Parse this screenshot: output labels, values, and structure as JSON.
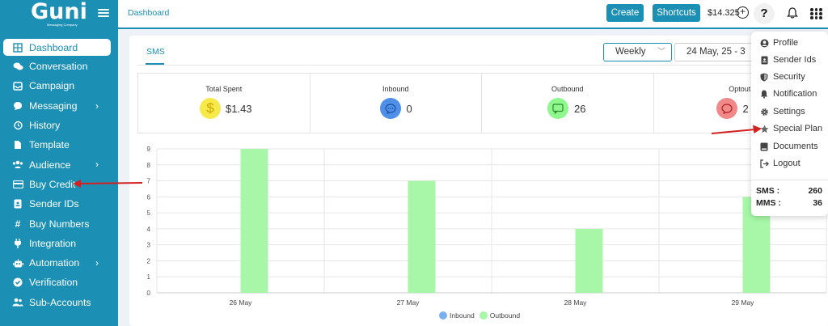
{
  "brand": {
    "name": "Guni",
    "tagline": "Messaging Company"
  },
  "sidebar": {
    "items": [
      {
        "label": "Dashboard",
        "icon": "grid-icon",
        "active": true
      },
      {
        "label": "Conversation",
        "icon": "chat-icon"
      },
      {
        "label": "Campaign",
        "icon": "inbox-icon"
      },
      {
        "label": "Messaging",
        "icon": "message-icon",
        "chevron": true
      },
      {
        "label": "History",
        "icon": "history-icon"
      },
      {
        "label": "Template",
        "icon": "file-icon"
      },
      {
        "label": "Audience",
        "icon": "users-icon",
        "chevron": true
      },
      {
        "label": "Buy Credit",
        "icon": "card-icon"
      },
      {
        "label": "Sender IDs",
        "icon": "id-icon"
      },
      {
        "label": "Buy Numbers",
        "icon": "hash-icon"
      },
      {
        "label": "Integration",
        "icon": "plug-icon"
      },
      {
        "label": "Automation",
        "icon": "robot-icon",
        "chevron": true
      },
      {
        "label": "Verification",
        "icon": "check-badge-icon"
      },
      {
        "label": "Sub-Accounts",
        "icon": "users-icon"
      }
    ]
  },
  "header": {
    "breadcrumb": "Dashboard",
    "create_label": "Create",
    "shortcuts_label": "Shortcuts",
    "balance": "$14.325",
    "help": "?"
  },
  "main": {
    "tab": "SMS",
    "period": "Weekly",
    "date_range": "24 May, 25  -  3",
    "stats": [
      {
        "title": "Total Spent",
        "value": "$1.43",
        "color": "#f7e94a"
      },
      {
        "title": "Inbound",
        "value": "0",
        "color": "#4f8fe8"
      },
      {
        "title": "Outbound",
        "value": "26",
        "color": "#8ef78e"
      },
      {
        "title": "Optout",
        "value": "2",
        "color": "#f08a8a"
      }
    ]
  },
  "chart_data": {
    "type": "bar",
    "categories": [
      "26 May",
      "27 May",
      "28 May",
      "29 May"
    ],
    "series": [
      {
        "name": "Inbound",
        "values": [
          0,
          0,
          0,
          0
        ],
        "color": "#7ab0f0"
      },
      {
        "name": "Outbound",
        "values": [
          9,
          7,
          4,
          6
        ],
        "color": "#a8f7a8"
      }
    ],
    "yticks": [
      "0",
      "1",
      "2",
      "3",
      "4",
      "5",
      "6",
      "7",
      "8",
      "9"
    ],
    "ylim": [
      0,
      9
    ],
    "legend": "bottom"
  },
  "dropdown": {
    "items": [
      {
        "label": "Profile",
        "icon": "user-icon"
      },
      {
        "label": "Sender Ids",
        "icon": "id-icon"
      },
      {
        "label": "Security",
        "icon": "shield-icon"
      },
      {
        "label": "Notification",
        "icon": "bell-icon"
      },
      {
        "label": "Settings",
        "icon": "gear-icon"
      },
      {
        "label": "Special Plan",
        "icon": "star-icon"
      },
      {
        "label": "Documents",
        "icon": "document-icon"
      },
      {
        "label": "Logout",
        "icon": "logout-icon"
      }
    ],
    "sms_label": "SMS :",
    "sms_value": "260",
    "mms_label": "MMS :",
    "mms_value": "36"
  }
}
